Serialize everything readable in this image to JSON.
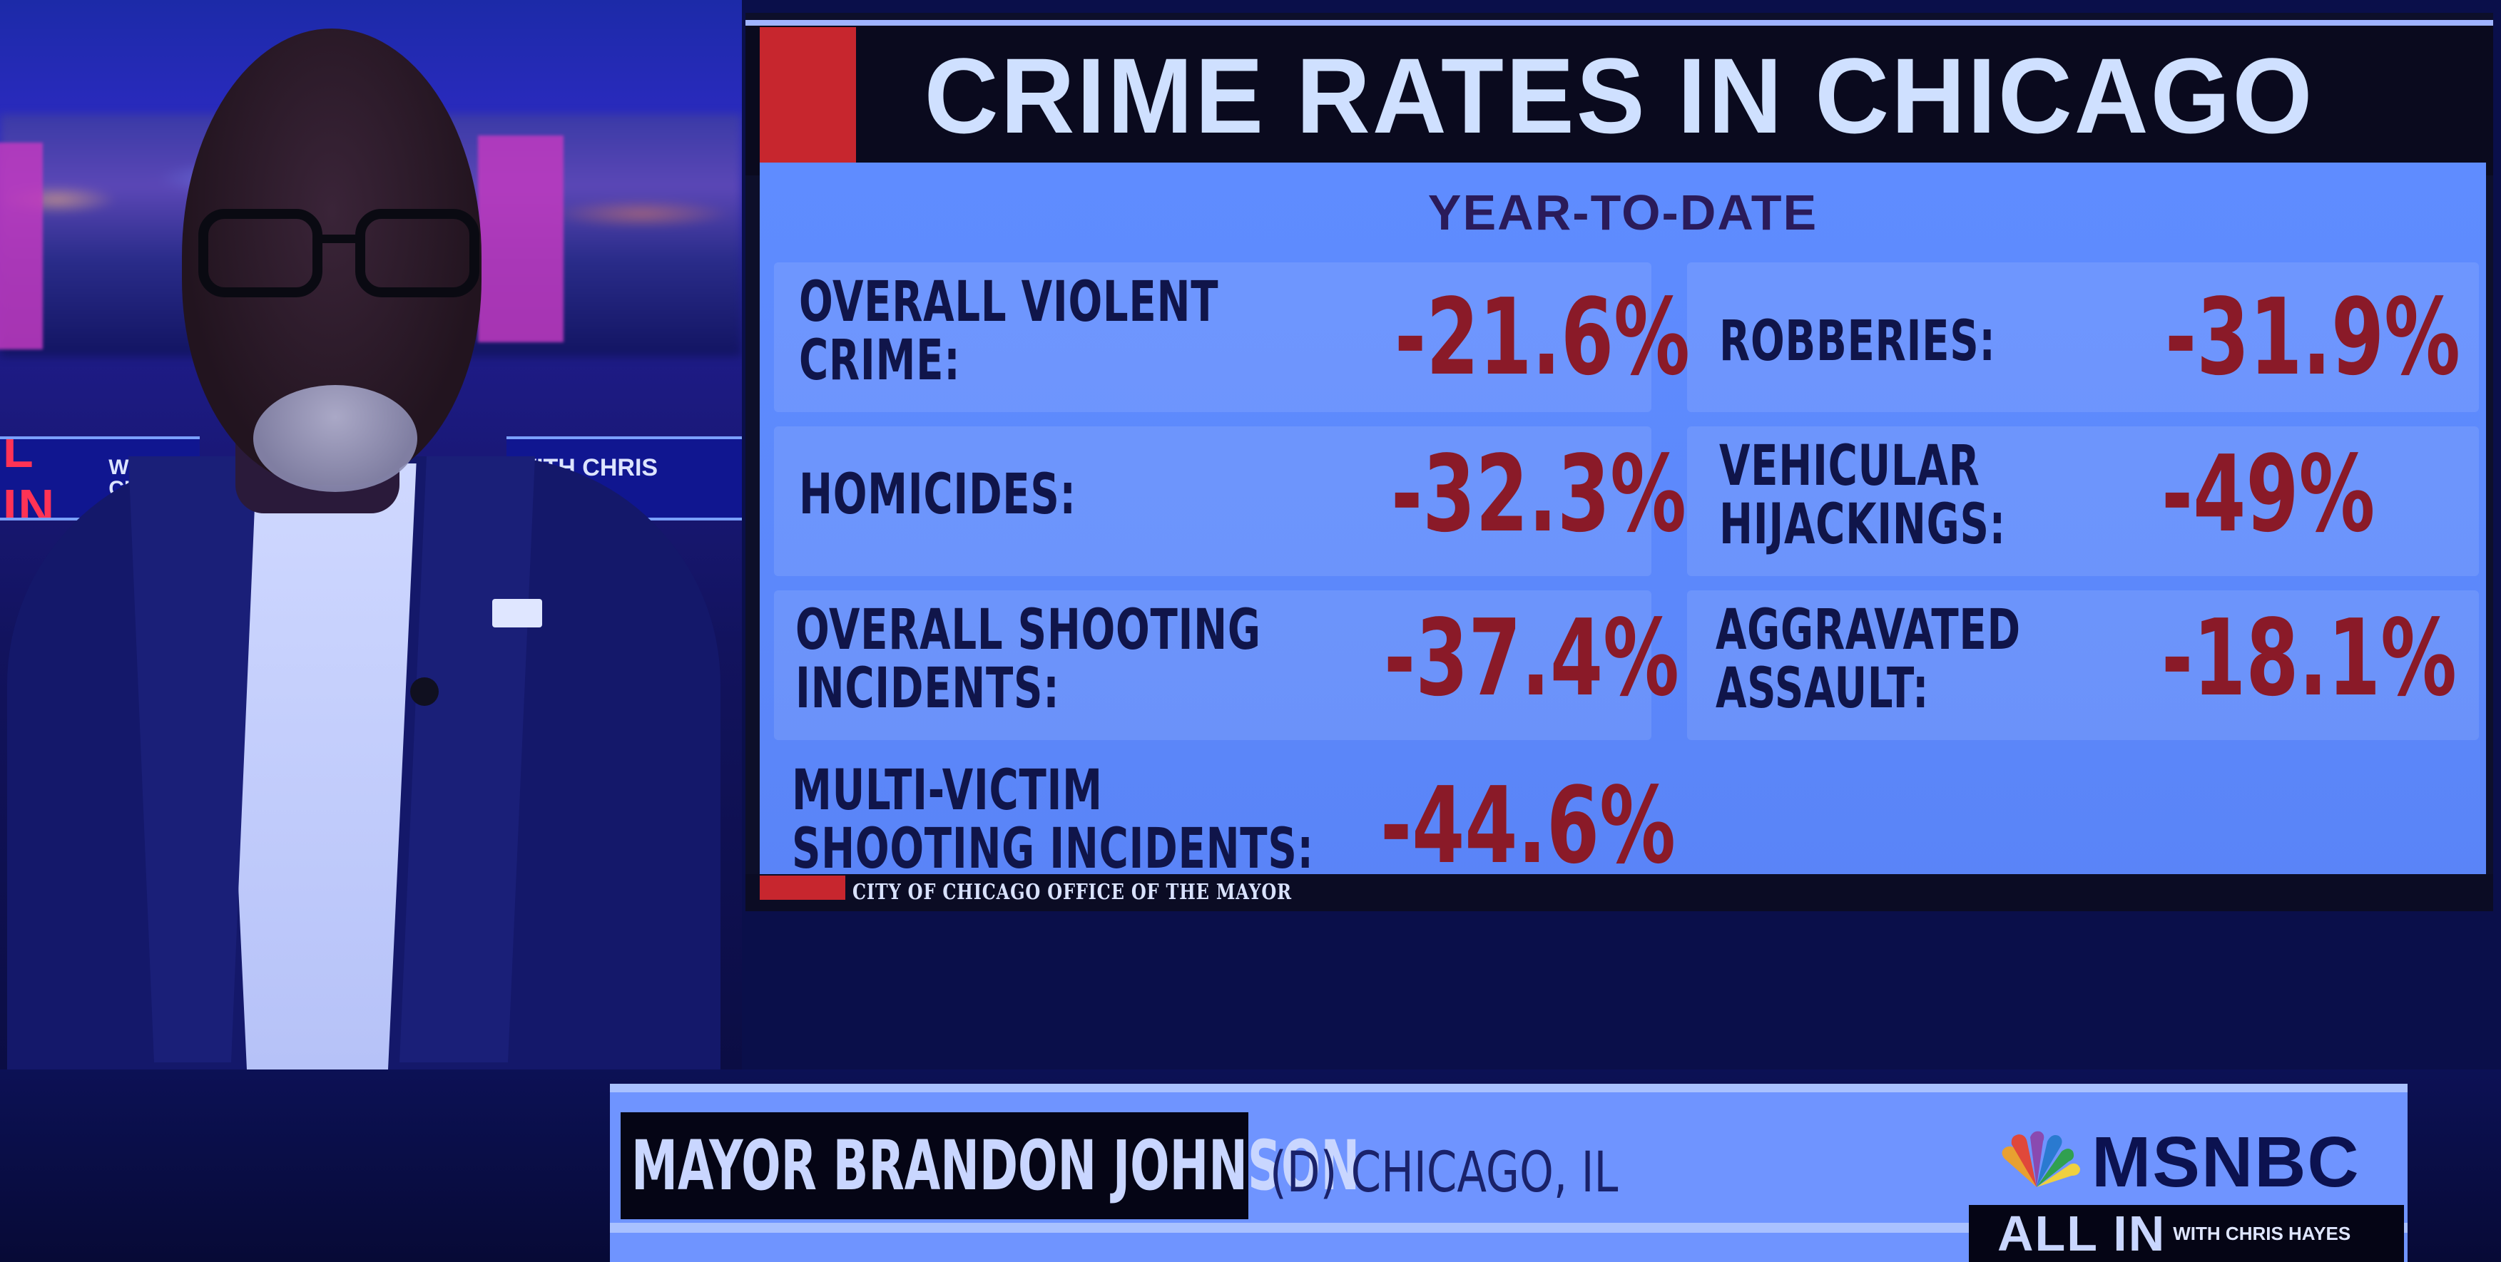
{
  "background_show": {
    "logo_left": {
      "main": "L IN",
      "with": "WITH CH"
    },
    "logo_right": {
      "with": "WITH CHRIS HAYES"
    }
  },
  "graphic": {
    "title": "CRIME RATES IN CHICAGO",
    "subtitle": "YEAR-TO-DATE",
    "source": "CITY OF CHICAGO OFFICE OF THE MAYOR",
    "stats": [
      {
        "label": "OVERALL VIOLENT\nCRIME:",
        "value": "-21.6%"
      },
      {
        "label": "HOMICIDES:",
        "value": "-32.3%"
      },
      {
        "label": "OVERALL SHOOTING\nINCIDENTS:",
        "value": "-37.4%"
      },
      {
        "label": "MULTI-VICTIM\nSHOOTING INCIDENTS:",
        "value": "-44.6%"
      },
      {
        "label": "ROBBERIES:",
        "value": "-31.9%"
      },
      {
        "label": "VEHICULAR\nHIJACKINGS:",
        "value": "-49%"
      },
      {
        "label": "AGGRAVATED\nASSAULT:",
        "value": "-18.1%"
      }
    ]
  },
  "lower_third": {
    "name": "MAYOR BRANDON JOHNSON",
    "affiliation": "(D) CHICAGO, IL",
    "network": "MSNBC",
    "show": {
      "main": "ALL IN",
      "with": "WITH CHRIS HAYES"
    }
  },
  "colors": {
    "accent_red": "#c7262e",
    "value_red": "#8a1a28",
    "panel_blue": "#5f8cff",
    "title_text": "#cfe0ff"
  },
  "icons": [
    "nbc-peacock-icon"
  ]
}
